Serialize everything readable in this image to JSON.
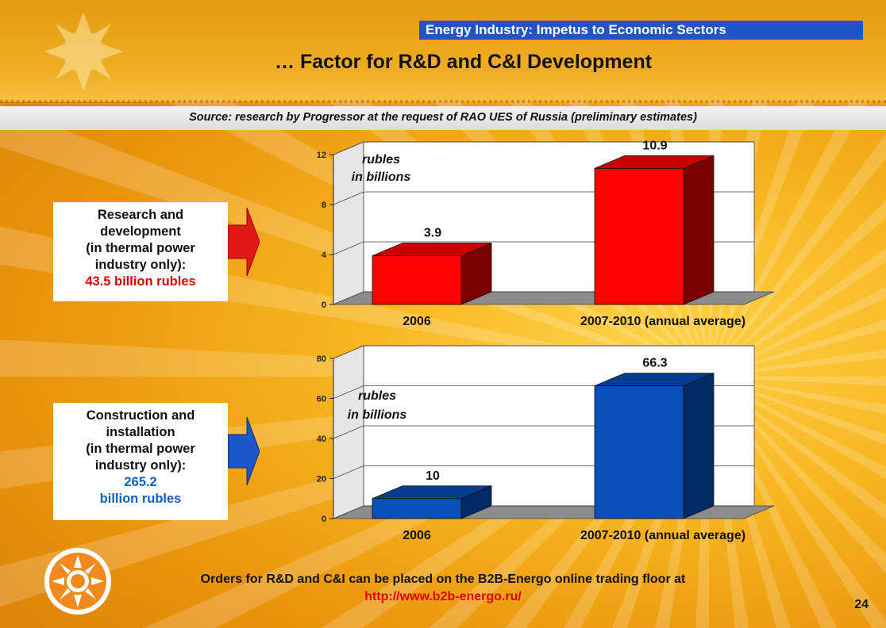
{
  "header": {
    "section": "Energy Industry: Impetus to Economic Sectors",
    "title": "… Factor for R&D and C&I Development",
    "source": "Source: research by Progressor at the request of RAO UES of Russia (preliminary estimates)"
  },
  "boxes": [
    {
      "lines": [
        "Research and",
        "development",
        "(in thermal power",
        "industry only):"
      ],
      "highlight": [
        "43.5 billion rubles"
      ],
      "highlight_color": "#e00000"
    },
    {
      "lines": [
        "Construction and",
        "installation",
        "(in thermal power",
        "industry only):"
      ],
      "highlight": [
        "265.2",
        "billion rubles"
      ],
      "highlight_color": "#1060c0"
    }
  ],
  "chart_data": [
    {
      "type": "bar",
      "categories": [
        "2006",
        "2007-2010 (annual average)"
      ],
      "values": [
        3.9,
        10.9
      ],
      "data_labels": [
        "3.9",
        "10.9"
      ],
      "unit_label": [
        "rubles",
        "in billions"
      ],
      "ylim": [
        0,
        12
      ],
      "yticks": [
        0,
        4,
        8,
        12
      ],
      "grid": true,
      "colors": {
        "front": "#ff0000",
        "top": "#cc0000",
        "side": "#7a0000"
      }
    },
    {
      "type": "bar",
      "categories": [
        "2006",
        "2007-2010 (annual average)"
      ],
      "values": [
        10,
        66.3
      ],
      "data_labels": [
        "10",
        "66.3"
      ],
      "unit_label": [
        "rubles",
        "in billions"
      ],
      "ylim": [
        0,
        80
      ],
      "yticks": [
        0,
        20,
        40,
        60,
        80
      ],
      "grid": true,
      "colors": {
        "front": "#0a4fb8",
        "top": "#073c8c",
        "side": "#042a63"
      }
    }
  ],
  "footer": {
    "text": "Orders for R&D and C&I can be placed on the B2B-Energo online trading floor at",
    "link": "http://www.b2b-energo.ru/"
  },
  "page_number": "24"
}
